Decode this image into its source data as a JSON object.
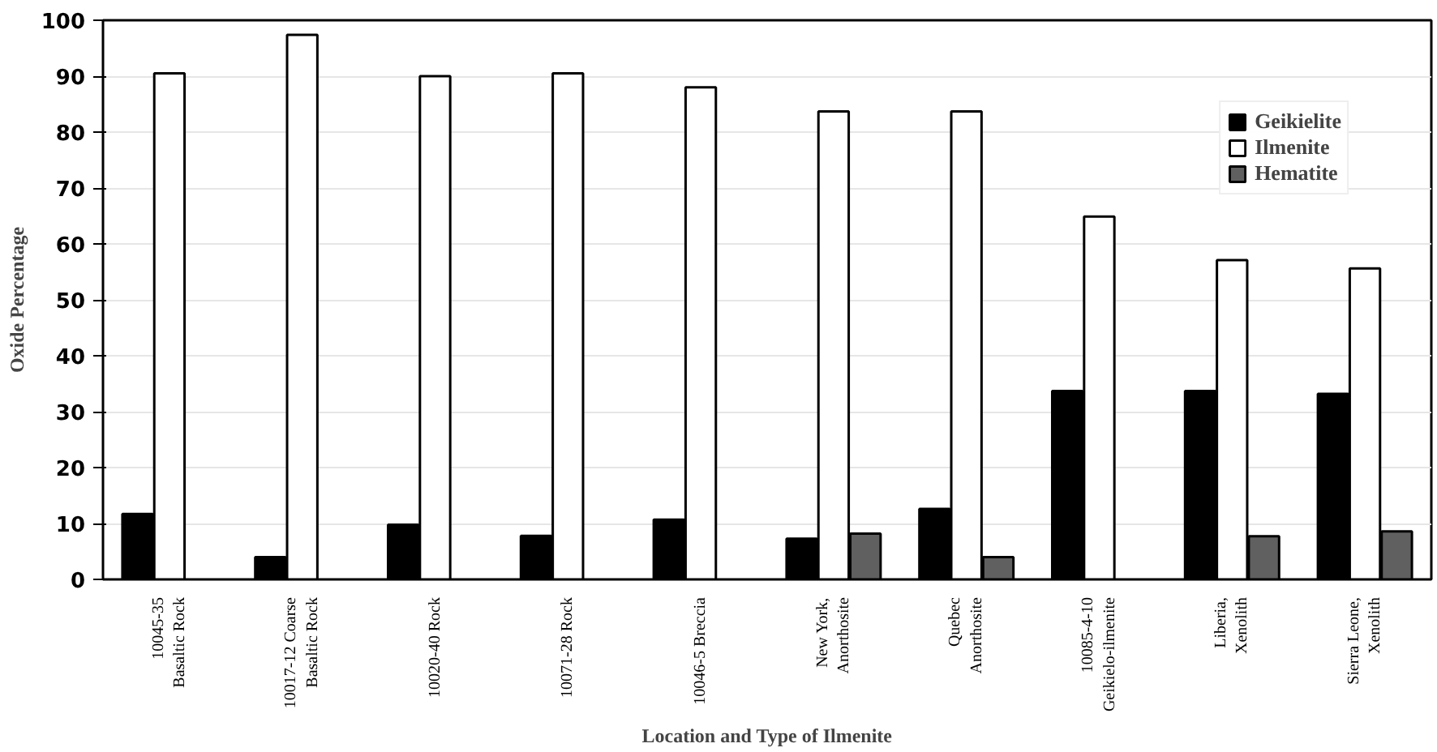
{
  "chart_data": {
    "type": "bar",
    "xlabel": "Location and Type of Ilmenite",
    "ylabel": "Oxide Percentage",
    "categories": [
      "10045-35 Basaltic Rock",
      "10017-12 Coarse Basaltic Rock",
      "10020-40 Rock",
      "10071-28 Rock",
      "10046-5 Breccia",
      "New York, Anorthosite",
      "Quebec Anorthosite",
      "10085-4-10 Geikielo-ilmenite",
      "Liberia, Xenolith",
      "Sierra Leone, Xenolith"
    ],
    "series": [
      {
        "name": "Geikielite",
        "color": "#000000",
        "values": [
          11.7,
          4.0,
          9.8,
          7.8,
          10.7,
          7.3,
          12.6,
          33.7,
          33.7,
          33.2
        ]
      },
      {
        "name": "Ilmenite",
        "color": "#ffffff",
        "values": [
          90.5,
          97.4,
          90.0,
          90.5,
          88.0,
          83.7,
          83.7,
          64.9,
          57.1,
          55.6
        ]
      },
      {
        "name": "Hematite",
        "color": "#606060",
        "values": [
          null,
          null,
          null,
          null,
          null,
          8.2,
          4.0,
          null,
          7.7,
          8.6
        ]
      }
    ],
    "ylim": [
      0,
      100
    ],
    "yticks": [
      0,
      10,
      20,
      30,
      40,
      50,
      60,
      70,
      80,
      90,
      100
    ],
    "grid": "y",
    "legend": "top right"
  }
}
